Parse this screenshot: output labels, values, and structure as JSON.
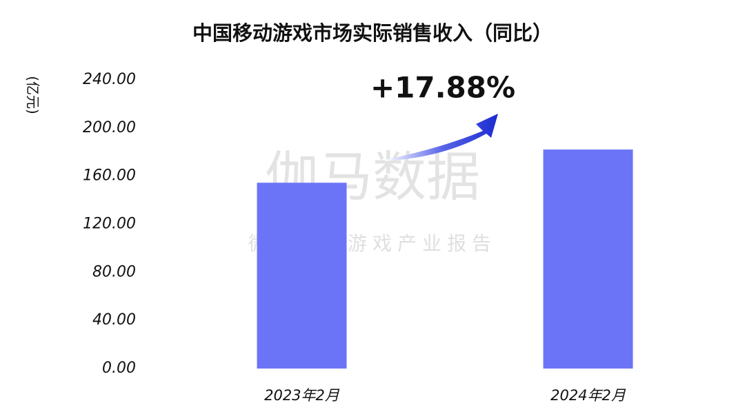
{
  "chart_data": {
    "type": "bar",
    "title": "中国移动游戏市场实际销售收入（同比）",
    "y_label": "(亿元)",
    "annotation": "+17.88%",
    "watermark": "伽马数据",
    "watermark_subtitle": "微信号：游戏产业报告",
    "categories": [
      "2023年2月",
      "2024年2月"
    ],
    "values": [
      154.5,
      182.1
    ],
    "color": "#6b74f6",
    "ylim": [
      0,
      240
    ],
    "yticks": [
      {
        "value": 0,
        "label": "0.00"
      },
      {
        "value": 40,
        "label": "40.00"
      },
      {
        "value": 80,
        "label": "80.00"
      },
      {
        "value": 120,
        "label": "120.00"
      },
      {
        "value": 160,
        "label": "160.00"
      },
      {
        "value": 200,
        "label": "200.00"
      },
      {
        "value": 240,
        "label": "240.00"
      }
    ]
  }
}
